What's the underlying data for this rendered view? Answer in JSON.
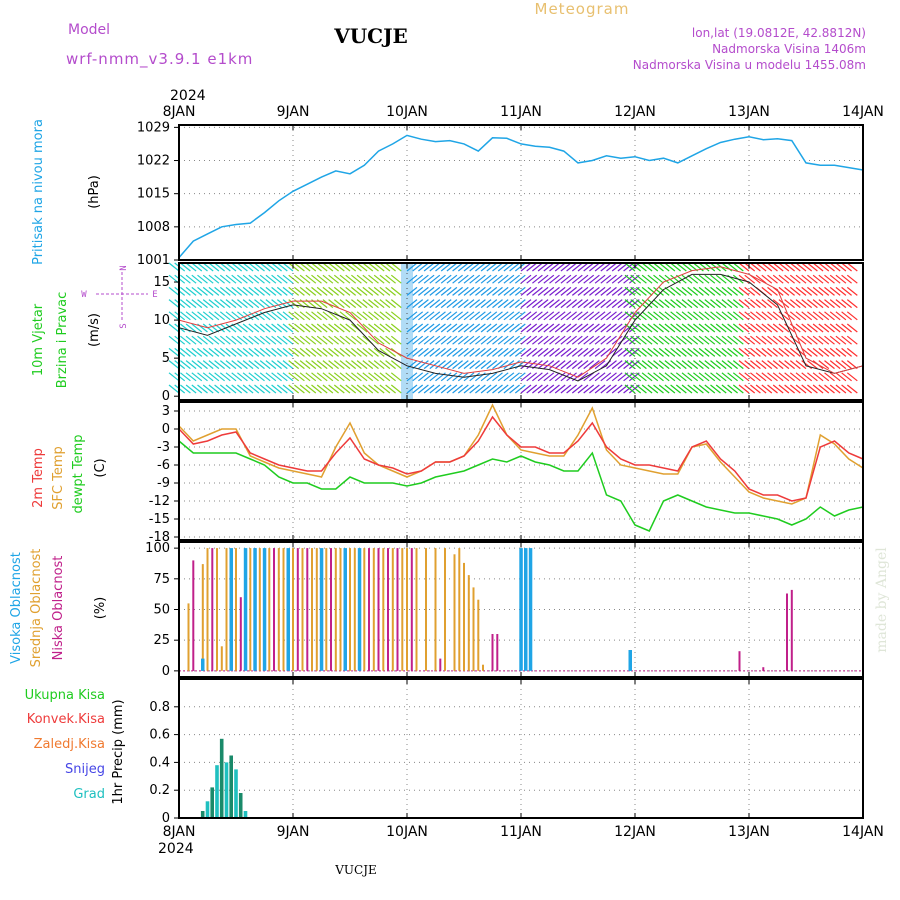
{
  "header": {
    "title": "VUCJE",
    "model_label": "Model",
    "model_name": "wrf-nmm_v3.9.1 e1km",
    "meteogram_label": "Meteogram",
    "coords": "lon,lat (19.0812E, 42.8812N)",
    "elevation": "Nadmorska Visina 1406m",
    "model_elevation": "Nadmorska Visina u modelu 1455.08m",
    "footer_title": "VUCJE",
    "watermark": "made by Angel"
  },
  "colors": {
    "pressure": "#1fa5e6",
    "temp2m": "#ee3b3b",
    "sfc": "#e0a030",
    "dewpt": "#1fcc1f",
    "high_cloud": "#1fa5e6",
    "mid_cloud": "#e0a030",
    "low_cloud": "#c0208a",
    "precip": "#1a8a6a",
    "purple_text": "#b44ccc",
    "gold_text": "#e8c070"
  },
  "time_axis": {
    "year": "2024",
    "day_labels": [
      "8JAN",
      "9JAN",
      "10JAN",
      "11JAN",
      "12JAN",
      "13JAN",
      "14JAN"
    ],
    "day_hours": [
      0,
      24,
      48,
      72,
      96,
      120,
      144
    ]
  },
  "panels": {
    "pressure": {
      "ylabels": [
        "Pritisak na nivou mora"
      ],
      "unit": "(hPa)"
    },
    "wind": {
      "ylabels": [
        "10m Vjetar",
        "Brzina i Pravac"
      ],
      "unit": "(m/s)",
      "compass": [
        "N",
        "W",
        "E",
        "S"
      ]
    },
    "temp": {
      "ylabels": [
        "2m Temp",
        "SFC Temp",
        "dewpt Temp"
      ],
      "unit": "(C)"
    },
    "cloud": {
      "ylabels": [
        "Visoka Oblacnost",
        "Srednja Oblacnost",
        "Niska Oblacnost"
      ],
      "unit": "(%)"
    },
    "precip": {
      "legend": [
        "Ukupna Kisa",
        "Konvek.Kisa",
        "Zaledj.Kisa",
        "Snijeg",
        "Grad"
      ],
      "legend_colors": [
        "#1fcc1f",
        "#ee3b3b",
        "#f07a30",
        "#4646e6",
        "#1fc0c0"
      ],
      "unit": "1hr Precip (mm)"
    }
  },
  "chart_data": [
    {
      "type": "line",
      "title": "",
      "ylabel": "Pritisak na nivou mora (hPa)",
      "ylim": [
        1001,
        1029.5
      ],
      "yticks": [
        1001,
        1008,
        1015,
        1022,
        1029
      ],
      "grid": true,
      "x_hours": [
        0,
        3,
        6,
        9,
        12,
        15,
        18,
        21,
        24,
        27,
        30,
        33,
        36,
        39,
        42,
        45,
        48,
        51,
        54,
        57,
        60,
        63,
        66,
        69,
        72,
        75,
        78,
        81,
        84,
        87,
        90,
        93,
        96,
        99,
        102,
        105,
        108,
        111,
        114,
        117,
        120,
        123,
        126,
        129,
        132,
        135,
        138,
        141,
        144
      ],
      "series": [
        {
          "name": "Pritisak na nivou mora",
          "values": [
            1001.5,
            1005,
            1006.5,
            1008,
            1008.5,
            1008.8,
            1011,
            1013.5,
            1015.5,
            1017,
            1018.5,
            1019.8,
            1019.2,
            1021,
            1024,
            1025.5,
            1027.3,
            1026.5,
            1026,
            1026.2,
            1025.5,
            1024,
            1026.8,
            1026.7,
            1025.5,
            1025,
            1024.8,
            1024,
            1021.5,
            1022,
            1023,
            1022.5,
            1022.8,
            1022,
            1022.5,
            1021.5,
            1023,
            1024.5,
            1025.8,
            1026.5,
            1027,
            1026.4,
            1026.6,
            1026.2,
            1021.5,
            1021,
            1021,
            1020.5,
            1020
          ]
        }
      ]
    },
    {
      "type": "line",
      "title": "",
      "ylabel": "10m Vjetar Brzina i Pravac (m/s)",
      "ylim": [
        -0.5,
        17.5
      ],
      "yticks": [
        0,
        5,
        10,
        15
      ],
      "grid": true,
      "x_hours": [
        0,
        6,
        12,
        18,
        24,
        30,
        36,
        42,
        48,
        54,
        60,
        66,
        72,
        78,
        84,
        90,
        96,
        102,
        108,
        114,
        120,
        126,
        132,
        138,
        144
      ],
      "series": [
        {
          "name": "wind speed",
          "values": [
            9,
            8,
            9.5,
            11,
            12,
            11.5,
            10,
            6,
            4,
            3,
            2.5,
            3,
            4,
            3.5,
            2,
            4,
            10,
            14,
            16,
            16,
            15,
            12,
            4,
            3,
            4
          ]
        },
        {
          "name": "gust",
          "values": [
            10,
            9,
            10,
            11.5,
            12.5,
            12.5,
            11,
            7,
            5,
            4,
            3,
            3.5,
            4.5,
            4,
            2.5,
            5,
            11,
            15,
            16.5,
            17,
            16,
            14,
            5,
            3,
            4
          ]
        }
      ],
      "barb_colors_by_day": [
        "#1fcfcf",
        "#8ad01f",
        "#1f9ae6",
        "#7a1fcf",
        "#1fcc1f",
        "#ff3030",
        "#7a3ad0"
      ]
    },
    {
      "type": "line",
      "title": "",
      "ylabel": "Temp (C)",
      "ylim": [
        -18.5,
        4.5
      ],
      "yticks": [
        -18,
        -15,
        -12,
        -9,
        -6,
        -3,
        0,
        3
      ],
      "grid": true,
      "x_hours": [
        0,
        3,
        6,
        9,
        12,
        15,
        18,
        21,
        24,
        27,
        30,
        33,
        36,
        39,
        42,
        45,
        48,
        51,
        54,
        57,
        60,
        63,
        66,
        69,
        72,
        75,
        78,
        81,
        84,
        87,
        90,
        93,
        96,
        99,
        102,
        105,
        108,
        111,
        114,
        117,
        120,
        123,
        126,
        129,
        132,
        135,
        138,
        141,
        144
      ],
      "series": [
        {
          "name": "2m Temp",
          "values": [
            0,
            -2.5,
            -2,
            -1,
            -0.5,
            -4,
            -5,
            -6,
            -6.5,
            -7,
            -7,
            -4,
            -1.5,
            -5,
            -6,
            -6.5,
            -7.5,
            -7,
            -5.5,
            -5.5,
            -4.5,
            -2,
            2,
            -1,
            -3,
            -3,
            -4,
            -4,
            -2,
            1,
            -3,
            -5,
            -6,
            -6,
            -6.5,
            -7,
            -3,
            -2,
            -5,
            -7,
            -10,
            -11,
            -11,
            -12,
            -11.5,
            -3,
            -2,
            -4,
            -5
          ]
        },
        {
          "name": "SFC Temp",
          "values": [
            0.5,
            -2,
            -1,
            0,
            0,
            -4.5,
            -5.5,
            -6.5,
            -7,
            -7.5,
            -8,
            -3,
            1,
            -4,
            -6,
            -7,
            -8,
            -7,
            -5.5,
            -5.5,
            -4.5,
            -1,
            4,
            -1,
            -3.5,
            -4,
            -4.5,
            -4.5,
            -1,
            3.5,
            -3.5,
            -6,
            -6.5,
            -7,
            -7.5,
            -7.5,
            -3,
            -2.5,
            -5.5,
            -8,
            -10.5,
            -11.5,
            -12,
            -12.5,
            -11.5,
            -1,
            -2.5,
            -5,
            -6.5
          ]
        },
        {
          "name": "dewpt Temp",
          "values": [
            -2,
            -4,
            -4,
            -4,
            -4,
            -5,
            -6,
            -8,
            -9,
            -9,
            -10,
            -10,
            -8,
            -9,
            -9,
            -9,
            -9.5,
            -9,
            -8,
            -7.5,
            -7,
            -6,
            -5,
            -5.5,
            -4.5,
            -5.5,
            -6,
            -7,
            -7,
            -4,
            -11,
            -12,
            -16,
            -17,
            -12,
            -11,
            -12,
            -13,
            -13.5,
            -14,
            -14,
            -14.5,
            -15,
            -16,
            -15,
            -13,
            -14.5,
            -13.5,
            -13
          ]
        }
      ]
    },
    {
      "type": "bar",
      "title": "",
      "ylabel": "Oblacnost (%)",
      "ylim": [
        -5,
        105
      ],
      "yticks": [
        0,
        25,
        50,
        75,
        100
      ],
      "grid": true,
      "series": [
        {
          "name": "Visoka Oblacnost",
          "points": [
            [
              5,
              10
            ],
            [
              11,
              100
            ],
            [
              14,
              100
            ],
            [
              16,
              100
            ],
            [
              18,
              100
            ],
            [
              23,
              100
            ],
            [
              30,
              100
            ],
            [
              35,
              100
            ],
            [
              38,
              100
            ],
            [
              72,
              100
            ],
            [
              73,
              100
            ],
            [
              74,
              100
            ],
            [
              95,
              17
            ]
          ]
        },
        {
          "name": "Srednja Oblacnost",
          "points": [
            [
              2,
              55
            ],
            [
              5,
              87
            ],
            [
              6,
              100
            ],
            [
              8,
              100
            ],
            [
              9,
              20
            ],
            [
              10,
              100
            ],
            [
              12,
              100
            ],
            [
              15,
              100
            ],
            [
              17,
              100
            ],
            [
              19,
              100
            ],
            [
              21,
              100
            ],
            [
              22,
              100
            ],
            [
              24,
              100
            ],
            [
              26,
              100
            ],
            [
              28,
              100
            ],
            [
              29,
              100
            ],
            [
              31,
              100
            ],
            [
              33,
              100
            ],
            [
              34,
              100
            ],
            [
              36,
              100
            ],
            [
              37,
              100
            ],
            [
              39,
              100
            ],
            [
              41,
              100
            ],
            [
              43,
              100
            ],
            [
              45,
              100
            ],
            [
              47,
              100
            ],
            [
              48,
              100
            ],
            [
              50,
              100
            ],
            [
              52,
              100
            ],
            [
              54,
              100
            ],
            [
              56,
              100
            ],
            [
              58,
              95
            ],
            [
              59,
              100
            ],
            [
              60,
              88
            ],
            [
              61,
              78
            ],
            [
              62,
              68
            ],
            [
              63,
              58
            ],
            [
              64,
              5
            ]
          ]
        },
        {
          "name": "Niska Oblacnost",
          "points": [
            [
              3,
              90
            ],
            [
              7,
              100
            ],
            [
              13,
              60
            ],
            [
              16,
              100
            ],
            [
              20,
              100
            ],
            [
              25,
              100
            ],
            [
              27,
              100
            ],
            [
              32,
              100
            ],
            [
              40,
              100
            ],
            [
              42,
              100
            ],
            [
              44,
              100
            ],
            [
              46,
              100
            ],
            [
              49,
              100
            ],
            [
              55,
              10
            ],
            [
              66,
              30
            ],
            [
              67,
              30
            ],
            [
              118,
              16
            ],
            [
              123,
              3
            ],
            [
              128,
              63
            ],
            [
              129,
              66
            ]
          ]
        }
      ]
    },
    {
      "type": "bar",
      "title": "",
      "ylabel": "1hr Precip (mm)",
      "ylim": [
        0,
        1.0
      ],
      "yticks": [
        0,
        0.2,
        0.4,
        0.6,
        0.8
      ],
      "grid": true,
      "series": [
        {
          "name": "Grad",
          "points": [
            [
              5,
              0.05
            ],
            [
              6,
              0.12
            ],
            [
              7,
              0.22
            ],
            [
              8,
              0.38
            ],
            [
              9,
              0.57
            ],
            [
              10,
              0.4
            ],
            [
              11,
              0.45
            ],
            [
              12,
              0.35
            ],
            [
              13,
              0.18
            ],
            [
              14,
              0.05
            ]
          ]
        }
      ]
    }
  ]
}
